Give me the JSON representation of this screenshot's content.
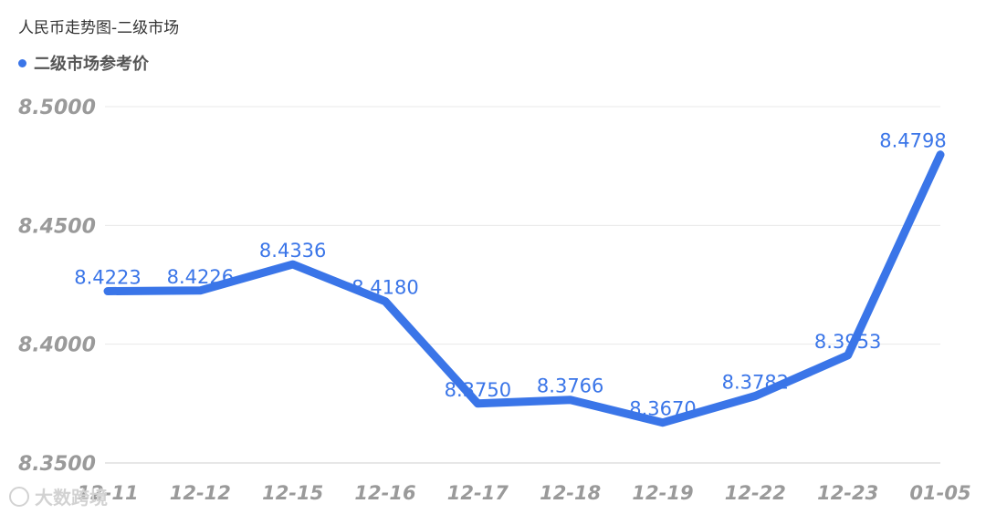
{
  "title": "人民币走势图-二级市场",
  "accent_color": "#3a75e8",
  "watermark": "大数跨境",
  "chart_data": {
    "type": "line",
    "categories": [
      "12-11",
      "12-12",
      "12-15",
      "12-16",
      "12-17",
      "12-18",
      "12-19",
      "12-22",
      "12-23",
      "01-05"
    ],
    "series": [
      {
        "name": "二级市场参考价",
        "values": [
          8.4223,
          8.4226,
          8.4336,
          8.418,
          8.375,
          8.3766,
          8.367,
          8.3782,
          8.3953,
          8.4798
        ],
        "labels": [
          "8.4223",
          "8.4226",
          "8.4336",
          "8.4180",
          "8.3750",
          "8.3766",
          "8.3670",
          "8.3782",
          "8.3953",
          "8.4798"
        ]
      }
    ],
    "yticks": [
      "8.3500",
      "8.4000",
      "8.4500",
      "8.5000"
    ],
    "ylim": [
      8.35,
      8.5
    ],
    "grid": true,
    "legend_position": "top-left"
  }
}
